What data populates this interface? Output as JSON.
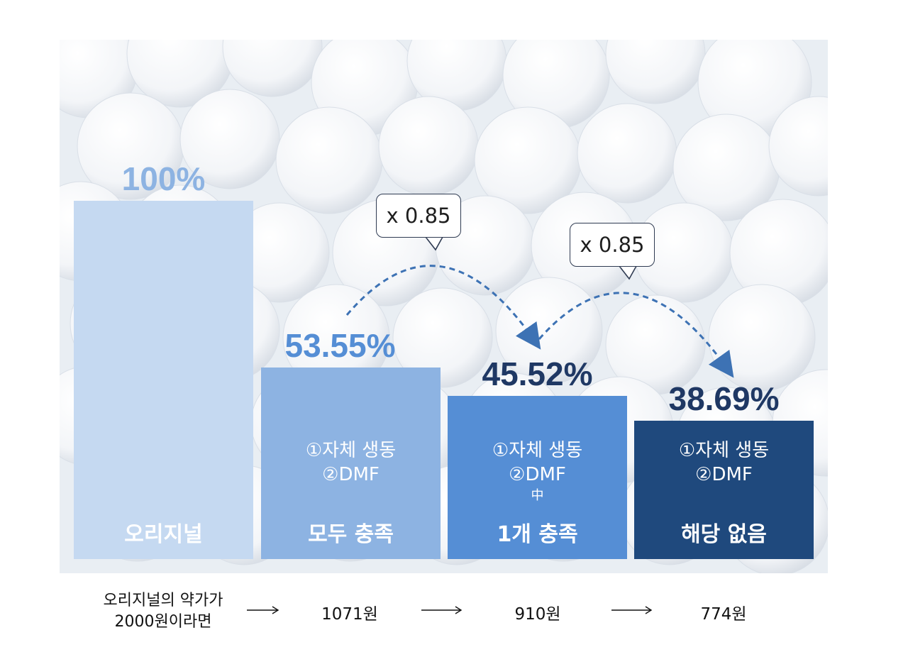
{
  "chart_data": {
    "type": "bar",
    "categories": [
      "오리지널",
      "모두 충족",
      "1개 충족",
      "해당 없음"
    ],
    "values": [
      100,
      53.55,
      45.52,
      38.69
    ],
    "value_labels": [
      "100%",
      "53.55%",
      "45.52%",
      "38.69%"
    ],
    "conditions": [
      null,
      {
        "line1": "①자체 생동",
        "line2": "②DMF",
        "line3": ""
      },
      {
        "line1": "①자체 생동",
        "line2": "②DMF",
        "line3": "中"
      },
      {
        "line1": "①자체 생동",
        "line2": "②DMF",
        "line3": ""
      }
    ],
    "bar_colors": [
      "#c5d9f1",
      "#8db3e2",
      "#558ed5",
      "#1f497d"
    ],
    "label_colors": [
      "#8db3e2",
      "#558ed5",
      "#1f3864",
      "#1f3864"
    ],
    "multipliers": [
      {
        "label": "x 0.85",
        "from": "모두 충족",
        "to": "1개 충족"
      },
      {
        "label": "x 0.85",
        "from": "1개 충족",
        "to": "해당 없음"
      }
    ],
    "ylim": [
      0,
      100
    ],
    "title": "",
    "xlabel": "",
    "ylabel": ""
  },
  "footer": {
    "note_line1": "오리지널의 약가가",
    "note_line2": "2000원이라면",
    "prices": [
      "1071원",
      "910원",
      "774원"
    ]
  }
}
